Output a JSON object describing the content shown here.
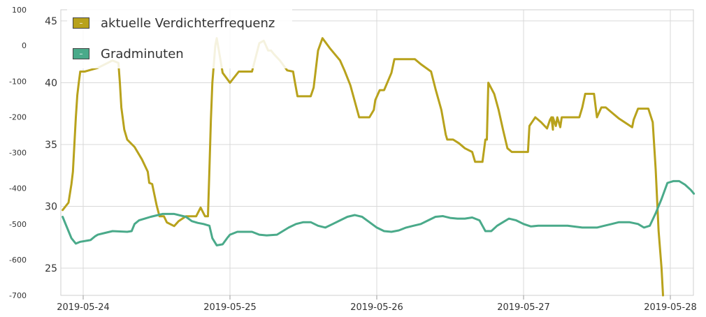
{
  "chart_data": {
    "type": "line",
    "title": "",
    "xlabel": "",
    "x_ticks": [
      "2019-05-24",
      "2019-05-25",
      "2019-05-26",
      "2019-05-27",
      "2019-05-28"
    ],
    "x_range_days": [
      -0.14,
      4.16
    ],
    "y_left": {
      "ticks": [
        100,
        0,
        -100,
        -200,
        -300,
        -400,
        -500,
        -600,
        -700
      ],
      "range": [
        -700,
        100
      ]
    },
    "y_right": {
      "ticks": [
        45,
        40,
        35,
        30,
        25
      ],
      "range": [
        22.8,
        45.9
      ]
    },
    "grid": true,
    "legend_placement": "top-left",
    "legend": [
      {
        "label": "aktuelle Verdichterfrequenz",
        "color": "#b8a21c",
        "swatch_glyph": "–"
      },
      {
        "label": "Gradminuten",
        "color": "#4aaa8a",
        "swatch_glyph": "–"
      }
    ],
    "series": [
      {
        "name": "aktuelle Verdichterfrequenz",
        "axis": "right",
        "color": "#b8a21c",
        "points": [
          [
            -0.14,
            29.7
          ],
          [
            -0.12,
            30
          ],
          [
            -0.1,
            30.3
          ],
          [
            -0.08,
            31.8
          ],
          [
            -0.07,
            32.8
          ],
          [
            -0.06,
            35
          ],
          [
            -0.05,
            37.2
          ],
          [
            -0.04,
            39
          ],
          [
            -0.03,
            40
          ],
          [
            -0.02,
            40.9
          ],
          [
            0.01,
            40.9
          ],
          [
            0.1,
            41.2
          ],
          [
            0.2,
            41.8
          ],
          [
            0.24,
            41.6
          ],
          [
            0.25,
            40
          ],
          [
            0.26,
            38
          ],
          [
            0.28,
            36.2
          ],
          [
            0.3,
            35.4
          ],
          [
            0.35,
            34.8
          ],
          [
            0.4,
            33.8
          ],
          [
            0.44,
            32.8
          ],
          [
            0.45,
            31.9
          ],
          [
            0.47,
            31.8
          ],
          [
            0.5,
            30.1
          ],
          [
            0.52,
            29.2
          ],
          [
            0.55,
            29.2
          ],
          [
            0.57,
            28.7
          ],
          [
            0.62,
            28.4
          ],
          [
            0.65,
            28.8
          ],
          [
            0.7,
            29.2
          ],
          [
            0.77,
            29.2
          ],
          [
            0.8,
            29.9
          ],
          [
            0.83,
            29.2
          ],
          [
            0.85,
            29.2
          ],
          [
            0.86,
            33
          ],
          [
            0.87,
            37
          ],
          [
            0.88,
            40
          ],
          [
            0.9,
            43
          ],
          [
            0.91,
            43.6
          ],
          [
            0.93,
            42.2
          ],
          [
            0.95,
            40.8
          ],
          [
            1.0,
            40
          ],
          [
            1.06,
            40.9
          ],
          [
            1.15,
            40.9
          ],
          [
            1.2,
            43.2
          ],
          [
            1.23,
            43.4
          ],
          [
            1.26,
            42.6
          ],
          [
            1.28,
            42.6
          ],
          [
            1.3,
            42.3
          ],
          [
            1.34,
            41.8
          ],
          [
            1.39,
            41
          ],
          [
            1.43,
            40.9
          ],
          [
            1.44,
            40.2
          ],
          [
            1.46,
            38.9
          ],
          [
            1.55,
            38.9
          ],
          [
            1.57,
            39.6
          ],
          [
            1.6,
            42.6
          ],
          [
            1.63,
            43.6
          ],
          [
            1.68,
            42.8
          ],
          [
            1.75,
            41.8
          ],
          [
            1.78,
            41
          ],
          [
            1.82,
            39.8
          ],
          [
            1.85,
            38.5
          ],
          [
            1.88,
            37.2
          ],
          [
            1.95,
            37.2
          ],
          [
            1.98,
            37.8
          ],
          [
            1.99,
            38.6
          ],
          [
            2.02,
            39.4
          ],
          [
            2.05,
            39.4
          ],
          [
            2.1,
            40.8
          ],
          [
            2.12,
            41.9
          ],
          [
            2.26,
            41.9
          ],
          [
            2.3,
            41.5
          ],
          [
            2.37,
            40.9
          ],
          [
            2.4,
            39.5
          ],
          [
            2.44,
            37.8
          ],
          [
            2.47,
            35.8
          ],
          [
            2.48,
            35.4
          ],
          [
            2.52,
            35.4
          ],
          [
            2.56,
            35.1
          ],
          [
            2.6,
            34.7
          ],
          [
            2.65,
            34.4
          ],
          [
            2.67,
            33.6
          ],
          [
            2.72,
            33.6
          ],
          [
            2.74,
            35.4
          ],
          [
            2.75,
            35.4
          ],
          [
            2.76,
            40
          ],
          [
            2.8,
            39.1
          ],
          [
            2.83,
            37.8
          ],
          [
            2.86,
            36.2
          ],
          [
            2.89,
            34.7
          ],
          [
            2.92,
            34.4
          ],
          [
            3.03,
            34.4
          ],
          [
            3.04,
            36.5
          ],
          [
            3.08,
            37.2
          ],
          [
            3.12,
            36.8
          ],
          [
            3.16,
            36.3
          ],
          [
            3.18,
            37
          ],
          [
            3.19,
            37.2
          ],
          [
            3.2,
            36.2
          ],
          [
            3.2,
            37.2
          ],
          [
            3.22,
            36.5
          ],
          [
            3.23,
            37.2
          ],
          [
            3.25,
            36.4
          ],
          [
            3.26,
            37.2
          ],
          [
            3.36,
            37.2
          ],
          [
            3.38,
            37.2
          ],
          [
            3.4,
            38
          ],
          [
            3.42,
            39.1
          ],
          [
            3.48,
            39.1
          ],
          [
            3.5,
            37.2
          ],
          [
            3.53,
            38
          ],
          [
            3.56,
            38
          ],
          [
            3.6,
            37.6
          ],
          [
            3.65,
            37.1
          ],
          [
            3.74,
            36.4
          ],
          [
            3.75,
            37
          ],
          [
            3.78,
            37.9
          ],
          [
            3.85,
            37.9
          ],
          [
            3.88,
            36.8
          ],
          [
            3.9,
            33
          ],
          [
            3.92,
            28
          ],
          [
            3.94,
            25
          ],
          [
            3.95,
            22.8
          ]
        ]
      },
      {
        "name": "Gradminuten",
        "axis": "left",
        "color": "#4aaa8a",
        "points": [
          [
            -0.14,
            -480
          ],
          [
            -0.12,
            -500
          ],
          [
            -0.1,
            -520
          ],
          [
            -0.08,
            -540
          ],
          [
            -0.05,
            -555
          ],
          [
            -0.02,
            -550
          ],
          [
            0.05,
            -545
          ],
          [
            0.08,
            -535
          ],
          [
            0.1,
            -530
          ],
          [
            0.15,
            -525
          ],
          [
            0.2,
            -520
          ],
          [
            0.3,
            -522
          ],
          [
            0.33,
            -520
          ],
          [
            0.35,
            -500
          ],
          [
            0.38,
            -490
          ],
          [
            0.42,
            -485
          ],
          [
            0.46,
            -480
          ],
          [
            0.5,
            -476
          ],
          [
            0.54,
            -472
          ],
          [
            0.58,
            -472
          ],
          [
            0.62,
            -472
          ],
          [
            0.66,
            -476
          ],
          [
            0.7,
            -480
          ],
          [
            0.74,
            -492
          ],
          [
            0.78,
            -497
          ],
          [
            0.82,
            -500
          ],
          [
            0.86,
            -505
          ],
          [
            0.88,
            -540
          ],
          [
            0.91,
            -560
          ],
          [
            0.95,
            -557
          ],
          [
            0.98,
            -540
          ],
          [
            1.0,
            -530
          ],
          [
            1.05,
            -522
          ],
          [
            1.15,
            -522
          ],
          [
            1.2,
            -530
          ],
          [
            1.25,
            -532
          ],
          [
            1.32,
            -530
          ],
          [
            1.36,
            -520
          ],
          [
            1.4,
            -510
          ],
          [
            1.45,
            -500
          ],
          [
            1.5,
            -495
          ],
          [
            1.55,
            -495
          ],
          [
            1.6,
            -505
          ],
          [
            1.65,
            -510
          ],
          [
            1.7,
            -500
          ],
          [
            1.75,
            -490
          ],
          [
            1.8,
            -480
          ],
          [
            1.85,
            -475
          ],
          [
            1.9,
            -480
          ],
          [
            1.95,
            -495
          ],
          [
            2.0,
            -510
          ],
          [
            2.05,
            -520
          ],
          [
            2.1,
            -522
          ],
          [
            2.15,
            -518
          ],
          [
            2.2,
            -510
          ],
          [
            2.25,
            -505
          ],
          [
            2.3,
            -500
          ],
          [
            2.35,
            -490
          ],
          [
            2.4,
            -480
          ],
          [
            2.45,
            -478
          ],
          [
            2.5,
            -483
          ],
          [
            2.55,
            -485
          ],
          [
            2.6,
            -485
          ],
          [
            2.65,
            -482
          ],
          [
            2.7,
            -490
          ],
          [
            2.72,
            -505
          ],
          [
            2.74,
            -520
          ],
          [
            2.78,
            -520
          ],
          [
            2.82,
            -505
          ],
          [
            2.86,
            -495
          ],
          [
            2.9,
            -485
          ],
          [
            2.95,
            -490
          ],
          [
            3.0,
            -500
          ],
          [
            3.05,
            -507
          ],
          [
            3.1,
            -505
          ],
          [
            3.2,
            -505
          ],
          [
            3.3,
            -505
          ],
          [
            3.4,
            -510
          ],
          [
            3.5,
            -510
          ],
          [
            3.55,
            -505
          ],
          [
            3.6,
            -500
          ],
          [
            3.65,
            -495
          ],
          [
            3.72,
            -495
          ],
          [
            3.78,
            -500
          ],
          [
            3.82,
            -510
          ],
          [
            3.86,
            -505
          ],
          [
            3.9,
            -470
          ],
          [
            3.94,
            -430
          ],
          [
            3.98,
            -385
          ],
          [
            4.02,
            -380
          ],
          [
            4.06,
            -380
          ],
          [
            4.1,
            -390
          ],
          [
            4.14,
            -405
          ],
          [
            4.16,
            -415
          ]
        ]
      }
    ]
  }
}
